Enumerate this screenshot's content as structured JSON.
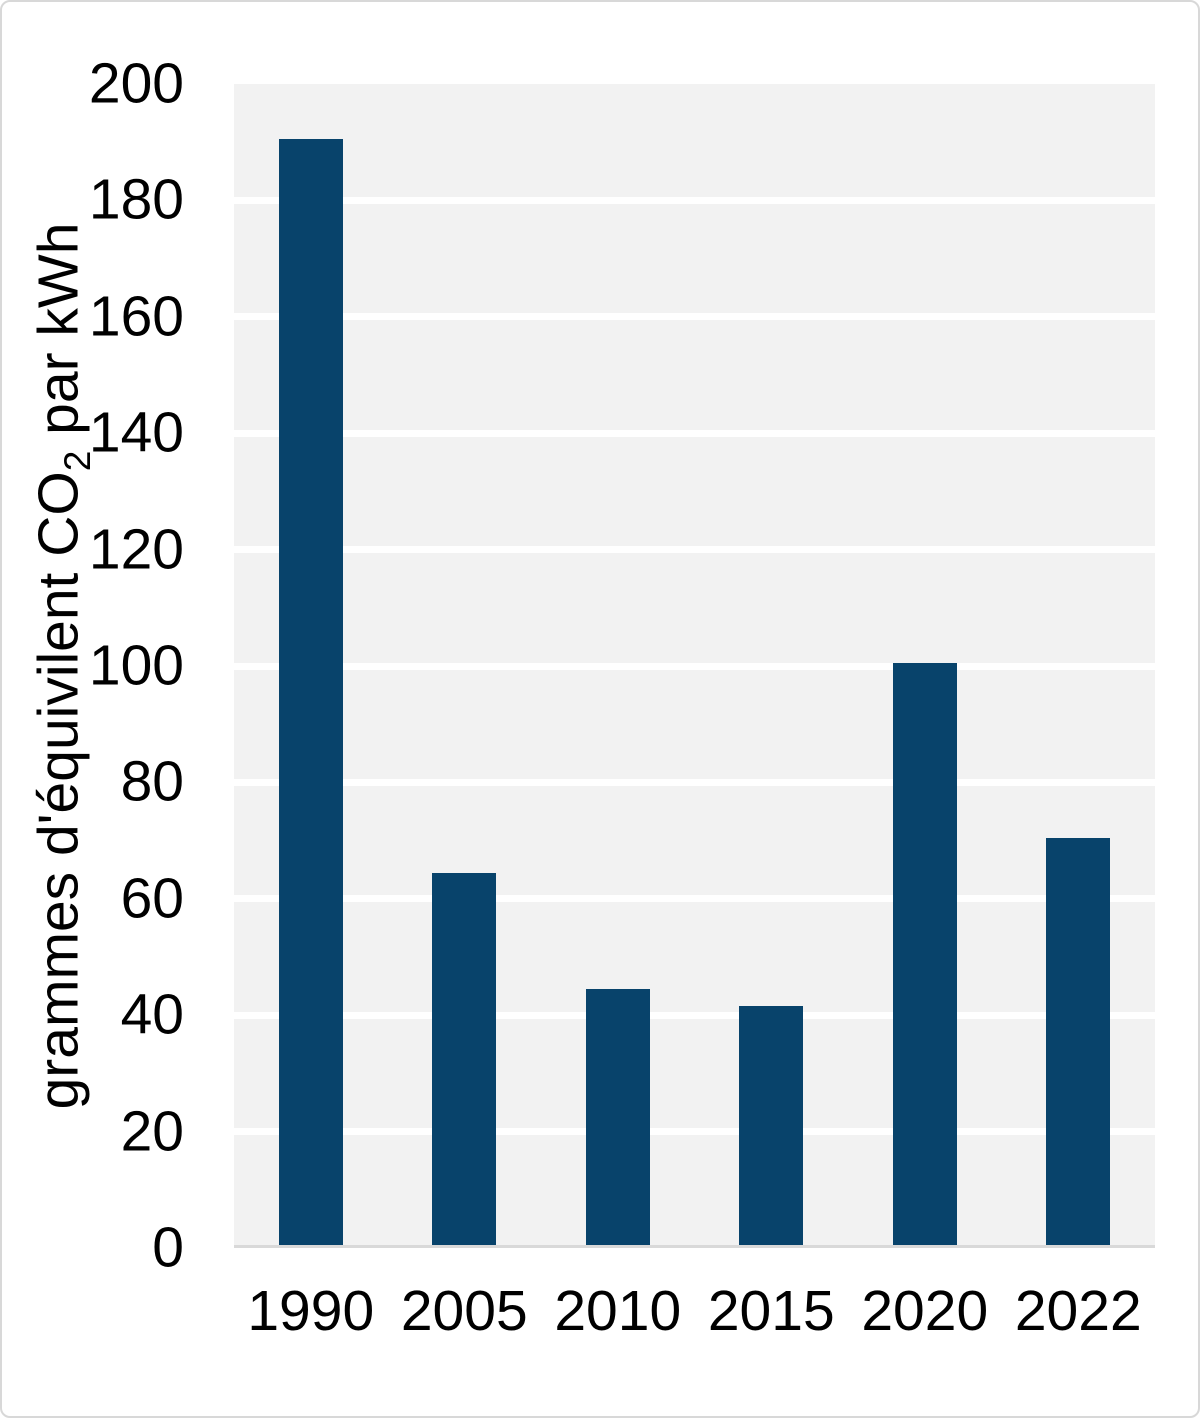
{
  "chart_data": {
    "type": "bar",
    "categories": [
      "1990",
      "2005",
      "2010",
      "2015",
      "2020",
      "2022"
    ],
    "values": [
      190,
      64,
      44,
      41,
      100,
      70
    ],
    "ylabel": "grammes d'équivilent CO2 par kWh",
    "ylabel_parts": {
      "pre": "grammes d'équivilent CO",
      "sub": "2",
      "post": " par kWh"
    },
    "ylim": [
      0,
      200
    ],
    "ytick_step": 20,
    "yticks": [
      0,
      20,
      40,
      60,
      80,
      100,
      120,
      140,
      160,
      180,
      200
    ],
    "grid": "horizontal-white",
    "legend": "none",
    "colors": {
      "bar": "#08436b",
      "plot_background": "#f2f2f2",
      "gridline": "#ffffff",
      "axis_line": "#d9d9d9",
      "text": "#000000",
      "page_background": "#ffffff",
      "page_border": "#d8d8d8"
    }
  }
}
